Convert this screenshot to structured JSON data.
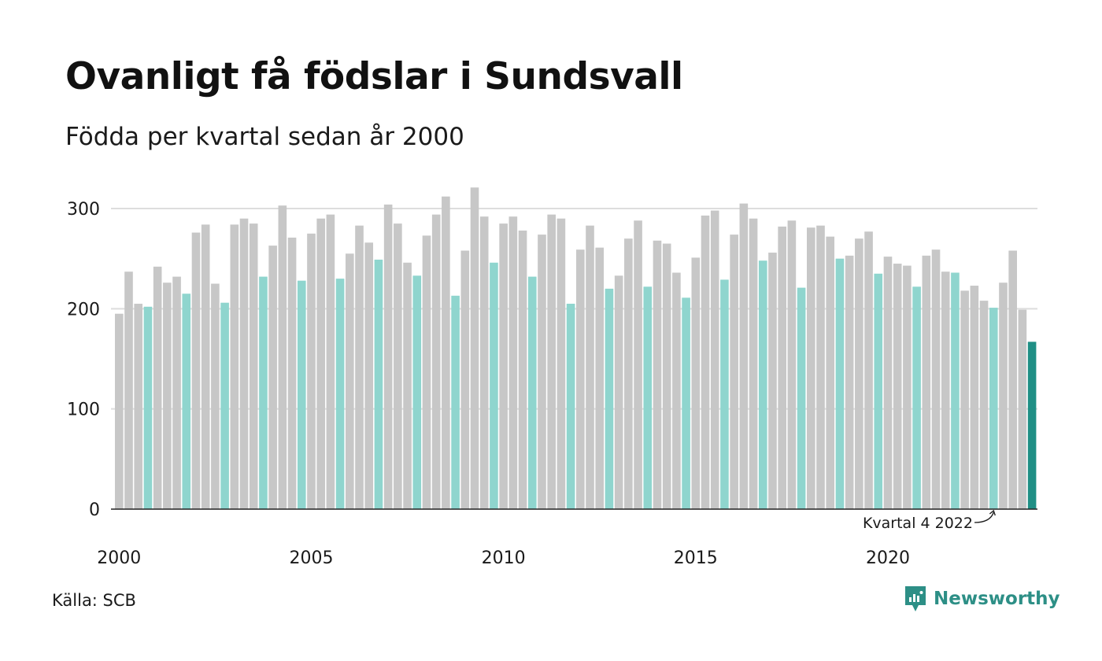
{
  "title": "Ovanligt få födslar i Sundsvall",
  "subtitle": "Födda per kvartal sedan år 2000",
  "source": "Källa: SCB",
  "brand": {
    "name": "Newsworthy",
    "icon": "newsworthy-logo-icon"
  },
  "colors": {
    "bar": "#c7c7c7",
    "highlight_quarter": "#8fd5ce",
    "latest": "#1f8f85",
    "grid": "#dddddd",
    "axis": "#222222",
    "brand": "#2d8f86"
  },
  "chart_data": {
    "type": "bar",
    "x_start": "2000 Q1",
    "interval": "quarter",
    "x_ticks": [
      "2000",
      "2005",
      "2010",
      "2015",
      "2020"
    ],
    "y_ticks": [
      0,
      100,
      200,
      300
    ],
    "ylim": [
      0,
      330
    ],
    "grid": true,
    "highlight_rule": "Kvartal 4 each year highlighted",
    "values": [
      195,
      237,
      205,
      202,
      242,
      226,
      232,
      215,
      276,
      284,
      225,
      206,
      284,
      290,
      285,
      232,
      263,
      303,
      271,
      228,
      275,
      290,
      294,
      230,
      255,
      283,
      266,
      249,
      304,
      285,
      246,
      233,
      273,
      294,
      312,
      213,
      258,
      321,
      292,
      246,
      285,
      292,
      278,
      232,
      274,
      294,
      290,
      205,
      259,
      283,
      261,
      220,
      233,
      270,
      288,
      222,
      268,
      265,
      236,
      211,
      251,
      293,
      298,
      229,
      274,
      305,
      290,
      248,
      256,
      282,
      288,
      221,
      281,
      283,
      272,
      250,
      253,
      270,
      277,
      235,
      252,
      245,
      243,
      222,
      253,
      259,
      237,
      236,
      218,
      223,
      208,
      201,
      226,
      258,
      199,
      167
    ],
    "annotation": "Kvartal 4 2022"
  }
}
